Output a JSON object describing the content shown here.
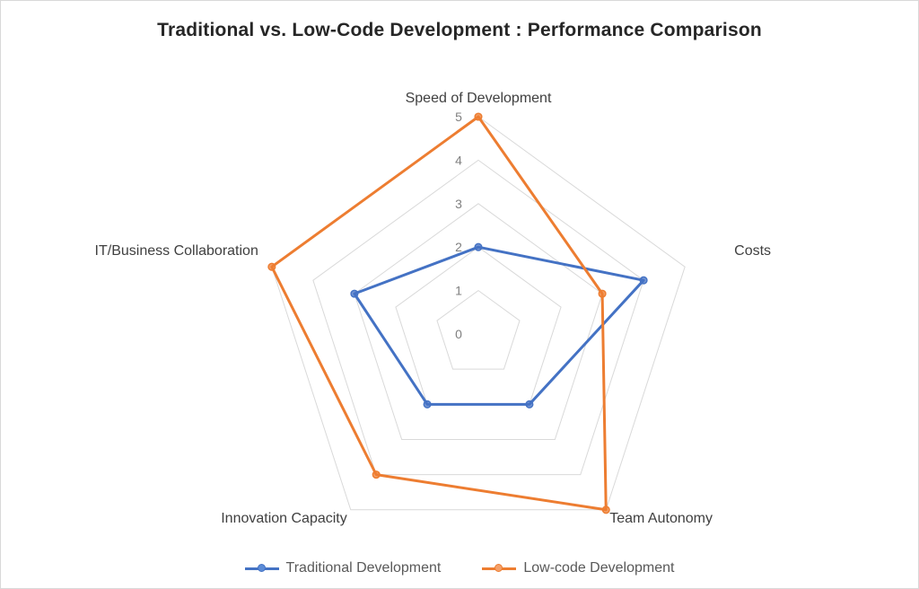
{
  "chart_data": {
    "type": "radar",
    "title": "Traditional vs. Low-Code Development : Performance Comparison",
    "axes": [
      "Speed of Development",
      "Costs",
      "Team Autonomy",
      "Innovation Capacity",
      "IT/Business Collaboration"
    ],
    "scale": {
      "min": 0,
      "max": 5,
      "ticks": [
        "0",
        "1",
        "2",
        "3",
        "4",
        "5"
      ]
    },
    "grid": true,
    "legend_position": "bottom",
    "series": [
      {
        "name": "Traditional Development",
        "color": "#4472c4",
        "values": [
          2,
          4,
          2,
          2,
          3
        ]
      },
      {
        "name": "Low-code Development",
        "color": "#ed7d31",
        "values": [
          5,
          3,
          5,
          4,
          5
        ]
      }
    ]
  }
}
